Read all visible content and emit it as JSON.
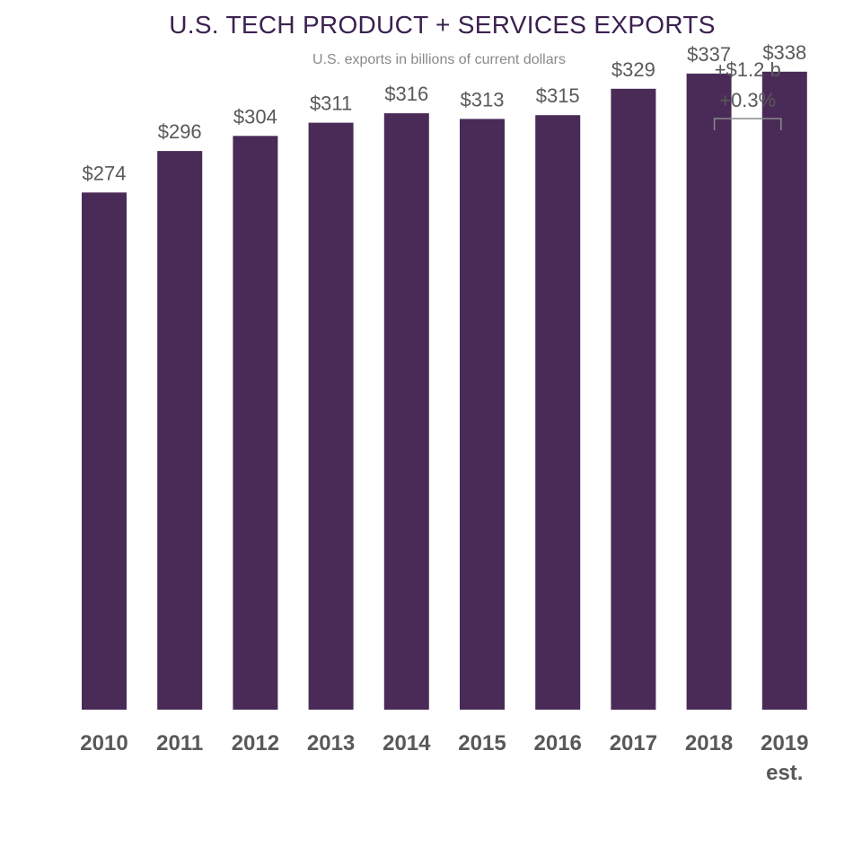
{
  "chart_data": {
    "type": "bar",
    "title": "U.S. TECH PRODUCT + SERVICES EXPORTS",
    "subtitle": "U.S. exports in billions  of current dollars",
    "xlabel": "",
    "ylabel": "",
    "categories": [
      "2010",
      "2011",
      "2012",
      "2013",
      "2014",
      "2015",
      "2016",
      "2017",
      "2018",
      "2019"
    ],
    "category_sublabels": [
      "",
      "",
      "",
      "",
      "",
      "",
      "",
      "",
      "",
      "est."
    ],
    "values": [
      274,
      296,
      304,
      311,
      316,
      313,
      315,
      329,
      337,
      338
    ],
    "value_labels": [
      "$274",
      "$296",
      "$304",
      "$311",
      "$316",
      "$313",
      "$315",
      "$329",
      "$337",
      "$338"
    ],
    "ylim": [
      0,
      376
    ],
    "grid": false,
    "annotation": {
      "from_category": "2018",
      "to_category": "2019",
      "lines": [
        "+$1.2 b",
        "+0.3%"
      ]
    },
    "colors": {
      "bar": "#4a2b58",
      "title": "#3b2150",
      "label": "#595959"
    }
  }
}
